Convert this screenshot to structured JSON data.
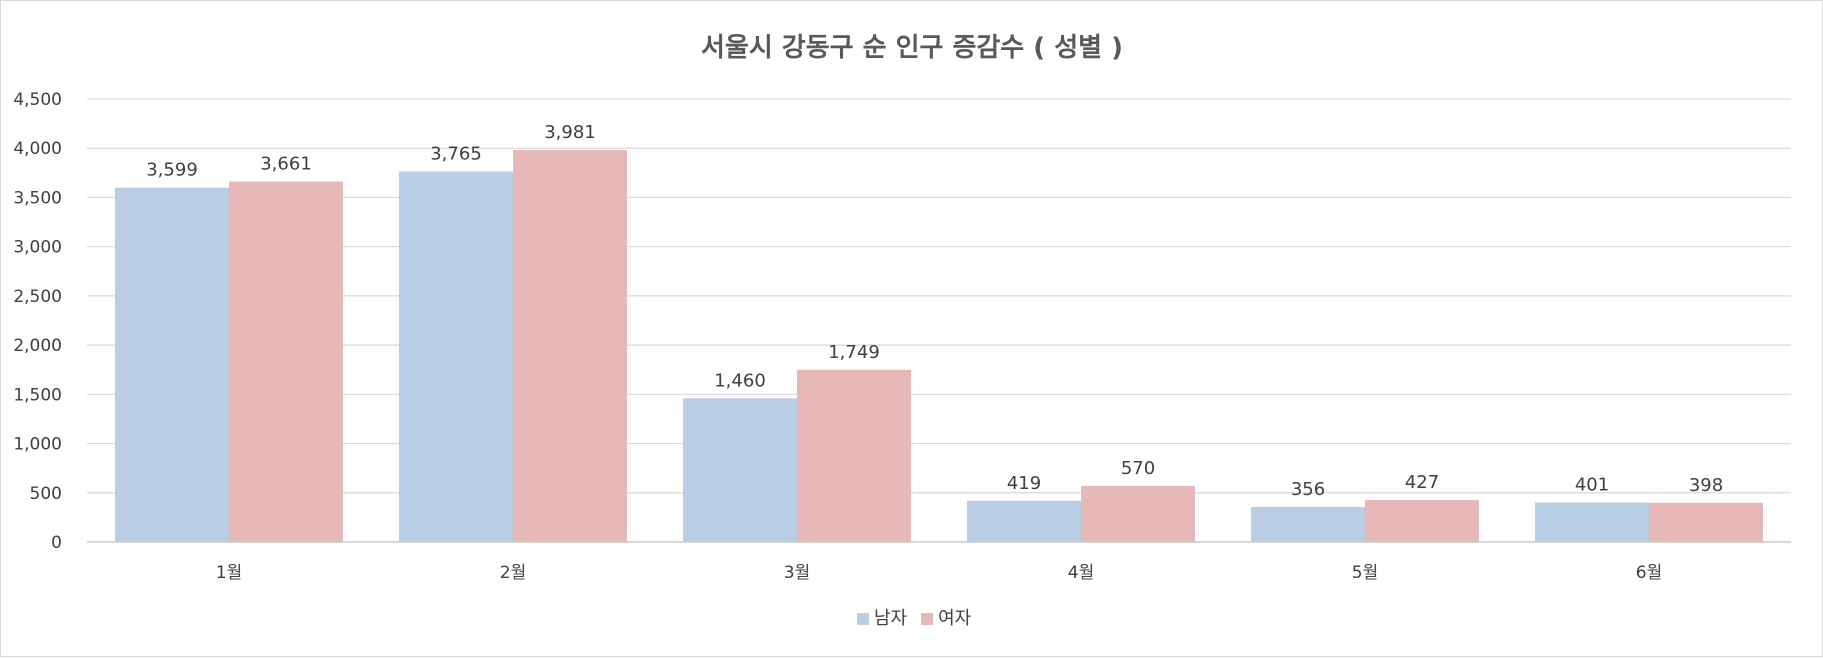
{
  "chart_data": {
    "type": "bar",
    "title": "서울시 강동구 순 인구 증감수 ( 성별 )",
    "categories": [
      "1월",
      "2월",
      "3월",
      "4월",
      "5월",
      "6월"
    ],
    "series": [
      {
        "name": "남자",
        "color": "#b9cde5",
        "values": [
          3599,
          3765,
          1460,
          419,
          356,
          401
        ]
      },
      {
        "name": "여자",
        "color": "#e6b9b8",
        "values": [
          3661,
          3981,
          1749,
          570,
          427,
          398
        ]
      }
    ],
    "value_labels": [
      [
        "3,599",
        "3,765",
        "1,460",
        "419",
        "356",
        "401"
      ],
      [
        "3,661",
        "3,981",
        "1,749",
        "570",
        "427",
        "398"
      ]
    ],
    "ylim": [
      0,
      4500
    ],
    "yticks": [
      "0",
      "500",
      "1,000",
      "1,500",
      "2,000",
      "2,500",
      "3,000",
      "3,500",
      "4,000",
      "4,500"
    ],
    "grid": true,
    "legend_position": "bottom"
  }
}
